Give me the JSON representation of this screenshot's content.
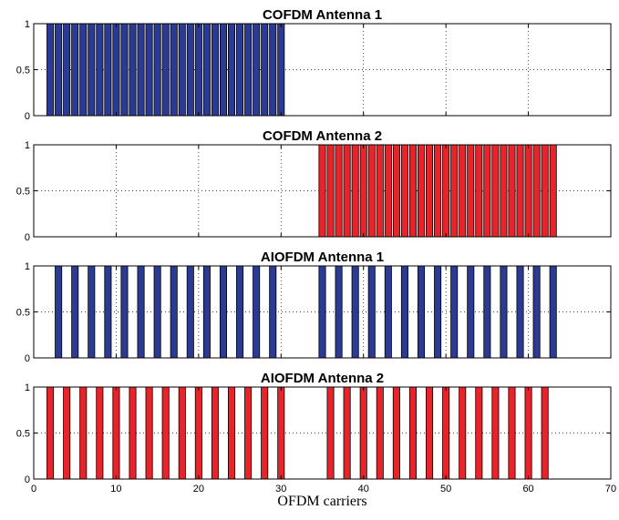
{
  "chart_data": [
    {
      "type": "bar",
      "title": "COFDM Antenna 1",
      "color": "#2b3a92",
      "xlim": [
        0,
        70
      ],
      "ylim": [
        0,
        1
      ],
      "xticks": [
        0,
        10,
        20,
        30,
        40,
        50,
        60,
        70
      ],
      "yticks": [
        "0",
        "0.5",
        "1"
      ],
      "grid": true,
      "x": [
        2,
        3,
        4,
        5,
        6,
        7,
        8,
        9,
        10,
        11,
        12,
        13,
        14,
        15,
        16,
        17,
        18,
        19,
        20,
        21,
        22,
        23,
        24,
        25,
        26,
        27,
        28,
        29,
        30
      ],
      "y": [
        1,
        1,
        1,
        1,
        1,
        1,
        1,
        1,
        1,
        1,
        1,
        1,
        1,
        1,
        1,
        1,
        1,
        1,
        1,
        1,
        1,
        1,
        1,
        1,
        1,
        1,
        1,
        1,
        1
      ]
    },
    {
      "type": "bar",
      "title": "COFDM Antenna 2",
      "color": "#e8242a",
      "xlim": [
        0,
        70
      ],
      "ylim": [
        0,
        1
      ],
      "xticks": [
        0,
        10,
        20,
        30,
        40,
        50,
        60,
        70
      ],
      "yticks": [
        "0",
        "0.5",
        "1"
      ],
      "grid": true,
      "x": [
        35,
        36,
        37,
        38,
        39,
        40,
        41,
        42,
        43,
        44,
        45,
        46,
        47,
        48,
        49,
        50,
        51,
        52,
        53,
        54,
        55,
        56,
        57,
        58,
        59,
        60,
        61,
        62,
        63
      ],
      "y": [
        1,
        1,
        1,
        1,
        1,
        1,
        1,
        1,
        1,
        1,
        1,
        1,
        1,
        1,
        1,
        1,
        1,
        1,
        1,
        1,
        1,
        1,
        1,
        1,
        1,
        1,
        1,
        1,
        1
      ]
    },
    {
      "type": "bar",
      "title": "AIOFDM Antenna 1",
      "color": "#2b3a92",
      "xlim": [
        0,
        70
      ],
      "ylim": [
        0,
        1
      ],
      "xticks": [
        0,
        10,
        20,
        30,
        40,
        50,
        60,
        70
      ],
      "yticks": [
        "0",
        "0.5",
        "1"
      ],
      "grid": true,
      "x": [
        3,
        5,
        7,
        9,
        11,
        13,
        15,
        17,
        19,
        21,
        23,
        25,
        27,
        29,
        35,
        37,
        39,
        41,
        43,
        45,
        47,
        49,
        51,
        53,
        55,
        57,
        59,
        61,
        63
      ],
      "y": [
        1,
        1,
        1,
        1,
        1,
        1,
        1,
        1,
        1,
        1,
        1,
        1,
        1,
        1,
        1,
        1,
        1,
        1,
        1,
        1,
        1,
        1,
        1,
        1,
        1,
        1,
        1,
        1,
        1
      ]
    },
    {
      "type": "bar",
      "title": "AIOFDM Antenna 2",
      "color": "#e8242a",
      "xlim": [
        0,
        70
      ],
      "ylim": [
        0,
        1
      ],
      "xticks": [
        0,
        10,
        20,
        30,
        40,
        50,
        60,
        70
      ],
      "xticklabels": [
        "0",
        "10",
        "20",
        "30",
        "40",
        "50",
        "60",
        "70"
      ],
      "yticks": [
        "0",
        "0.5",
        "1"
      ],
      "grid": true,
      "xlabel": "OFDM carriers",
      "x": [
        2,
        4,
        6,
        8,
        10,
        12,
        14,
        16,
        18,
        20,
        22,
        24,
        26,
        28,
        30,
        36,
        38,
        40,
        42,
        44,
        46,
        48,
        50,
        52,
        54,
        56,
        58,
        60,
        62
      ],
      "y": [
        1,
        1,
        1,
        1,
        1,
        1,
        1,
        1,
        1,
        1,
        1,
        1,
        1,
        1,
        1,
        1,
        1,
        1,
        1,
        1,
        1,
        1,
        1,
        1,
        1,
        1,
        1,
        1,
        1
      ]
    }
  ]
}
